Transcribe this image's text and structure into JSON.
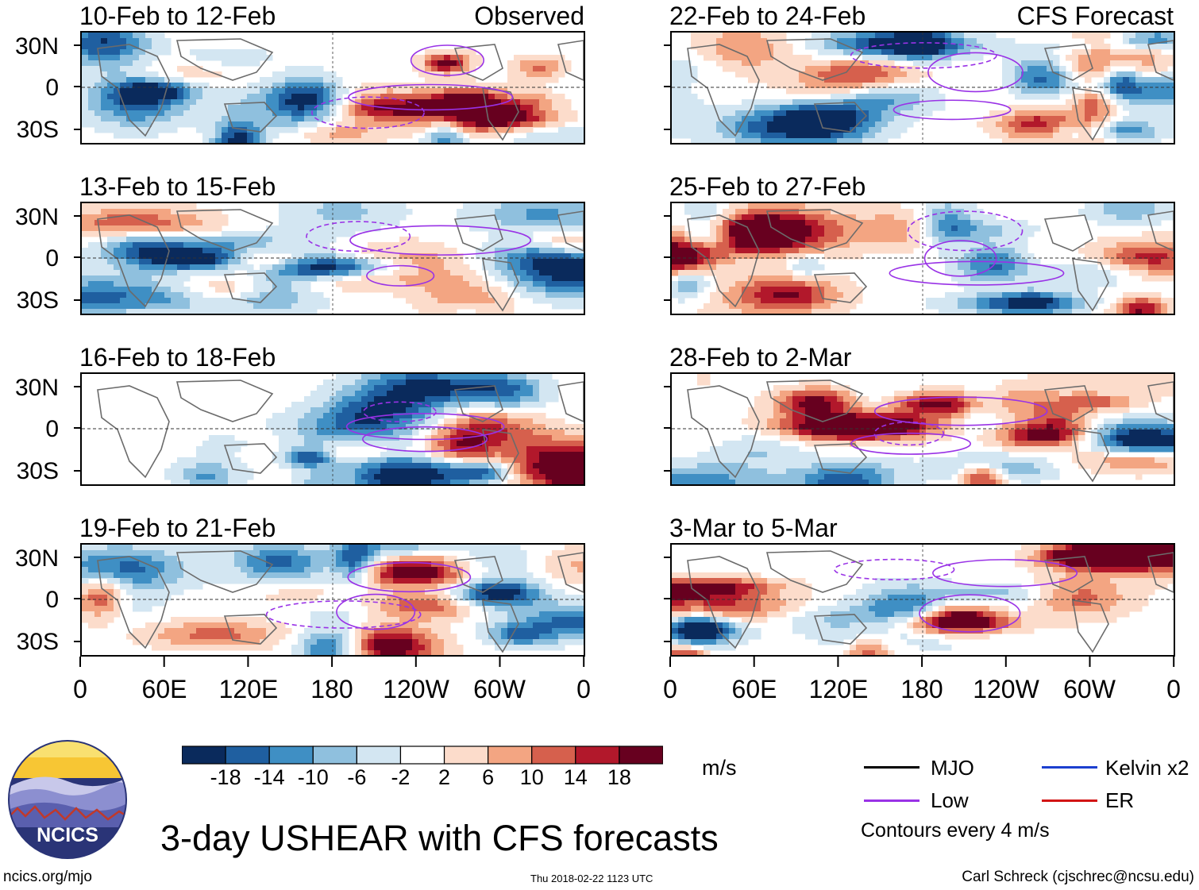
{
  "panels_left": [
    {
      "title": "10-Feb to 12-Feb",
      "tag": "Observed",
      "seed": 11
    },
    {
      "title": "13-Feb to 15-Feb",
      "tag": "",
      "seed": 23
    },
    {
      "title": "16-Feb to 18-Feb",
      "tag": "",
      "seed": 37
    },
    {
      "title": "19-Feb to 21-Feb",
      "tag": "",
      "seed": 41
    }
  ],
  "panels_right": [
    {
      "title": "22-Feb to 24-Feb",
      "tag": "CFS Forecast",
      "seed": 53
    },
    {
      "title": "25-Feb to 27-Feb",
      "tag": "",
      "seed": 67
    },
    {
      "title": "28-Feb to 2-Mar",
      "tag": "",
      "seed": 71
    },
    {
      "title": "3-Mar to 5-Mar",
      "tag": "",
      "seed": 89
    }
  ],
  "lat_labels": [
    "30N",
    "0",
    "30S"
  ],
  "lon_labels": [
    "0",
    "60E",
    "120E",
    "180",
    "120W",
    "60W",
    "0"
  ],
  "colorbar": {
    "colors": [
      "#0a2a5c",
      "#1f5fa0",
      "#3f8fc4",
      "#8fc0de",
      "#d3e6f2",
      "#ffffff",
      "#fcdccb",
      "#f3a582",
      "#d6604d",
      "#b2182b",
      "#67001f"
    ],
    "labels": [
      "-18",
      "-14",
      "-10",
      "-6",
      "-2",
      "2",
      "6",
      "10",
      "14",
      "18"
    ],
    "units": "m/s"
  },
  "legend": {
    "items": [
      {
        "label": "MJO",
        "color": "#000000"
      },
      {
        "label": "Kelvin x2",
        "color": "#1c3fd0"
      },
      {
        "label": "Low",
        "color": "#9932e6"
      },
      {
        "label": "ER",
        "color": "#d21414"
      }
    ],
    "note": "Contours every 4 m/s"
  },
  "title": "3-day USHEAR with CFS forecasts",
  "logo_text": "NCICS",
  "site": "ncics.org/mjo",
  "timestamp": "Thu 2018-02-22 1123 UTC",
  "author": "Carl Schreck (cjschrec@ncsu.edu)"
}
